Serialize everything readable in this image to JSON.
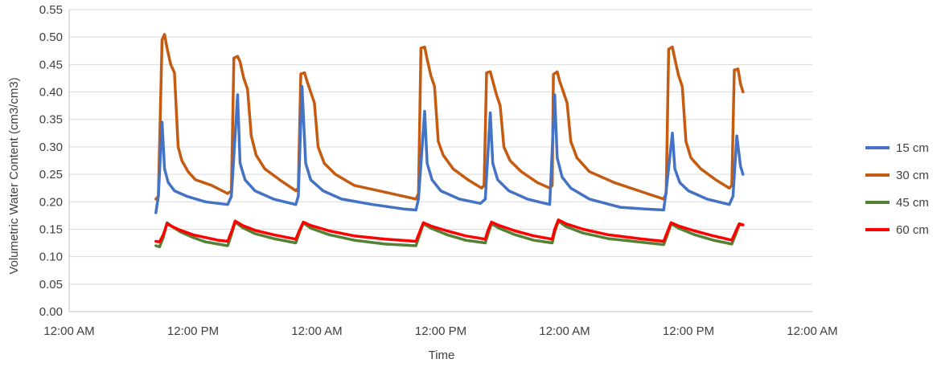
{
  "chart_data": {
    "type": "line",
    "title": "",
    "xlabel": "Time",
    "ylabel": "Volumetric Water Content (cm3/cm3)",
    "ylim": [
      0,
      0.55
    ],
    "y_ticks": [
      "0.00",
      "0.05",
      "0.10",
      "0.15",
      "0.20",
      "0.25",
      "0.30",
      "0.35",
      "0.40",
      "0.45",
      "0.50",
      "0.55"
    ],
    "xlim_days": [
      0,
      6.0
    ],
    "x_ticks": [
      {
        "label": "12:00 AM",
        "day": 0
      },
      {
        "label": "12:00 PM",
        "day": 1.0
      },
      {
        "label": "12:00 AM",
        "day": 2.0
      },
      {
        "label": "12:00 PM",
        "day": 3.0
      },
      {
        "label": "12:00 AM",
        "day": 4.0
      },
      {
        "label": "12:00 PM",
        "day": 5.0
      },
      {
        "label": "12:00 AM",
        "day": 6.0
      }
    ],
    "grid": true,
    "legend_position": "right",
    "series": [
      {
        "name": "15 cm",
        "color": "#4472C4",
        "points": [
          [
            0.7,
            0.18
          ],
          [
            0.72,
            0.21
          ],
          [
            0.75,
            0.345
          ],
          [
            0.77,
            0.26
          ],
          [
            0.8,
            0.235
          ],
          [
            0.85,
            0.22
          ],
          [
            0.95,
            0.21
          ],
          [
            1.1,
            0.2
          ],
          [
            1.28,
            0.195
          ],
          [
            1.31,
            0.21
          ],
          [
            1.36,
            0.395
          ],
          [
            1.38,
            0.27
          ],
          [
            1.42,
            0.24
          ],
          [
            1.5,
            0.22
          ],
          [
            1.65,
            0.205
          ],
          [
            1.83,
            0.195
          ],
          [
            1.85,
            0.21
          ],
          [
            1.88,
            0.41
          ],
          [
            1.91,
            0.27
          ],
          [
            1.95,
            0.24
          ],
          [
            2.05,
            0.22
          ],
          [
            2.2,
            0.205
          ],
          [
            2.45,
            0.195
          ],
          [
            2.7,
            0.187
          ],
          [
            2.8,
            0.185
          ],
          [
            2.82,
            0.205
          ],
          [
            2.87,
            0.365
          ],
          [
            2.89,
            0.27
          ],
          [
            2.93,
            0.24
          ],
          [
            3.0,
            0.22
          ],
          [
            3.15,
            0.205
          ],
          [
            3.32,
            0.197
          ],
          [
            3.36,
            0.205
          ],
          [
            3.4,
            0.362
          ],
          [
            3.42,
            0.27
          ],
          [
            3.46,
            0.24
          ],
          [
            3.55,
            0.22
          ],
          [
            3.7,
            0.205
          ],
          [
            3.88,
            0.195
          ],
          [
            3.92,
            0.395
          ],
          [
            3.94,
            0.28
          ],
          [
            3.98,
            0.245
          ],
          [
            4.05,
            0.225
          ],
          [
            4.2,
            0.205
          ],
          [
            4.45,
            0.19
          ],
          [
            4.65,
            0.187
          ],
          [
            4.8,
            0.185
          ],
          [
            4.82,
            0.22
          ],
          [
            4.87,
            0.325
          ],
          [
            4.89,
            0.26
          ],
          [
            4.93,
            0.235
          ],
          [
            5.0,
            0.22
          ],
          [
            5.15,
            0.205
          ],
          [
            5.33,
            0.195
          ],
          [
            5.36,
            0.21
          ],
          [
            5.39,
            0.32
          ],
          [
            5.42,
            0.265
          ],
          [
            5.44,
            0.25
          ]
        ]
      },
      {
        "name": "30 cm",
        "color": "#C55A11",
        "points": [
          [
            0.7,
            0.205
          ],
          [
            0.72,
            0.21
          ],
          [
            0.75,
            0.495
          ],
          [
            0.77,
            0.505
          ],
          [
            0.79,
            0.48
          ],
          [
            0.82,
            0.45
          ],
          [
            0.85,
            0.435
          ],
          [
            0.88,
            0.3
          ],
          [
            0.91,
            0.275
          ],
          [
            0.96,
            0.255
          ],
          [
            1.02,
            0.24
          ],
          [
            1.15,
            0.23
          ],
          [
            1.28,
            0.215
          ],
          [
            1.31,
            0.22
          ],
          [
            1.33,
            0.462
          ],
          [
            1.36,
            0.465
          ],
          [
            1.38,
            0.455
          ],
          [
            1.41,
            0.425
          ],
          [
            1.44,
            0.405
          ],
          [
            1.47,
            0.32
          ],
          [
            1.51,
            0.285
          ],
          [
            1.58,
            0.26
          ],
          [
            1.7,
            0.24
          ],
          [
            1.83,
            0.22
          ],
          [
            1.85,
            0.225
          ],
          [
            1.87,
            0.433
          ],
          [
            1.9,
            0.435
          ],
          [
            1.92,
            0.42
          ],
          [
            1.95,
            0.4
          ],
          [
            1.98,
            0.38
          ],
          [
            2.01,
            0.3
          ],
          [
            2.06,
            0.27
          ],
          [
            2.15,
            0.25
          ],
          [
            2.3,
            0.23
          ],
          [
            2.5,
            0.22
          ],
          [
            2.7,
            0.21
          ],
          [
            2.8,
            0.205
          ],
          [
            2.82,
            0.215
          ],
          [
            2.84,
            0.48
          ],
          [
            2.87,
            0.482
          ],
          [
            2.89,
            0.46
          ],
          [
            2.92,
            0.43
          ],
          [
            2.95,
            0.41
          ],
          [
            2.98,
            0.31
          ],
          [
            3.02,
            0.285
          ],
          [
            3.1,
            0.26
          ],
          [
            3.22,
            0.24
          ],
          [
            3.33,
            0.225
          ],
          [
            3.35,
            0.23
          ],
          [
            3.37,
            0.435
          ],
          [
            3.4,
            0.437
          ],
          [
            3.42,
            0.42
          ],
          [
            3.45,
            0.395
          ],
          [
            3.48,
            0.375
          ],
          [
            3.51,
            0.3
          ],
          [
            3.56,
            0.275
          ],
          [
            3.65,
            0.255
          ],
          [
            3.78,
            0.235
          ],
          [
            3.88,
            0.225
          ],
          [
            3.9,
            0.23
          ],
          [
            3.91,
            0.432
          ],
          [
            3.94,
            0.437
          ],
          [
            3.96,
            0.42
          ],
          [
            3.99,
            0.4
          ],
          [
            4.02,
            0.38
          ],
          [
            4.05,
            0.31
          ],
          [
            4.1,
            0.28
          ],
          [
            4.2,
            0.255
          ],
          [
            4.4,
            0.235
          ],
          [
            4.6,
            0.22
          ],
          [
            4.8,
            0.205
          ],
          [
            4.82,
            0.215
          ],
          [
            4.84,
            0.478
          ],
          [
            4.87,
            0.482
          ],
          [
            4.89,
            0.46
          ],
          [
            4.92,
            0.43
          ],
          [
            4.95,
            0.41
          ],
          [
            4.98,
            0.31
          ],
          [
            5.02,
            0.28
          ],
          [
            5.1,
            0.26
          ],
          [
            5.22,
            0.24
          ],
          [
            5.33,
            0.225
          ],
          [
            5.35,
            0.23
          ],
          [
            5.37,
            0.44
          ],
          [
            5.4,
            0.442
          ],
          [
            5.42,
            0.415
          ],
          [
            5.44,
            0.4
          ]
        ]
      },
      {
        "name": "45 cm",
        "color": "#548235",
        "points": [
          [
            0.7,
            0.12
          ],
          [
            0.73,
            0.118
          ],
          [
            0.76,
            0.135
          ],
          [
            0.79,
            0.162
          ],
          [
            0.83,
            0.155
          ],
          [
            0.9,
            0.145
          ],
          [
            1.0,
            0.135
          ],
          [
            1.1,
            0.127
          ],
          [
            1.2,
            0.123
          ],
          [
            1.28,
            0.12
          ],
          [
            1.31,
            0.14
          ],
          [
            1.34,
            0.163
          ],
          [
            1.4,
            0.153
          ],
          [
            1.5,
            0.142
          ],
          [
            1.65,
            0.133
          ],
          [
            1.83,
            0.125
          ],
          [
            1.86,
            0.145
          ],
          [
            1.89,
            0.162
          ],
          [
            1.95,
            0.152
          ],
          [
            2.1,
            0.14
          ],
          [
            2.3,
            0.13
          ],
          [
            2.55,
            0.123
          ],
          [
            2.8,
            0.12
          ],
          [
            2.83,
            0.14
          ],
          [
            2.86,
            0.16
          ],
          [
            2.92,
            0.152
          ],
          [
            3.05,
            0.14
          ],
          [
            3.2,
            0.13
          ],
          [
            3.36,
            0.125
          ],
          [
            3.38,
            0.14
          ],
          [
            3.41,
            0.16
          ],
          [
            3.47,
            0.152
          ],
          [
            3.6,
            0.14
          ],
          [
            3.75,
            0.13
          ],
          [
            3.9,
            0.125
          ],
          [
            3.92,
            0.145
          ],
          [
            3.95,
            0.165
          ],
          [
            4.01,
            0.155
          ],
          [
            4.15,
            0.143
          ],
          [
            4.35,
            0.133
          ],
          [
            4.6,
            0.127
          ],
          [
            4.8,
            0.122
          ],
          [
            4.83,
            0.14
          ],
          [
            4.86,
            0.16
          ],
          [
            4.92,
            0.152
          ],
          [
            5.05,
            0.14
          ],
          [
            5.2,
            0.13
          ],
          [
            5.35,
            0.123
          ],
          [
            5.38,
            0.14
          ],
          [
            5.41,
            0.158
          ],
          [
            5.44,
            0.158
          ]
        ]
      },
      {
        "name": "60 cm",
        "color": "#FF0000",
        "points": [
          [
            0.7,
            0.128
          ],
          [
            0.73,
            0.127
          ],
          [
            0.76,
            0.14
          ],
          [
            0.79,
            0.16
          ],
          [
            0.83,
            0.155
          ],
          [
            0.9,
            0.148
          ],
          [
            1.0,
            0.14
          ],
          [
            1.1,
            0.135
          ],
          [
            1.2,
            0.13
          ],
          [
            1.28,
            0.128
          ],
          [
            1.31,
            0.145
          ],
          [
            1.34,
            0.165
          ],
          [
            1.4,
            0.157
          ],
          [
            1.5,
            0.148
          ],
          [
            1.65,
            0.14
          ],
          [
            1.83,
            0.132
          ],
          [
            1.86,
            0.148
          ],
          [
            1.89,
            0.163
          ],
          [
            1.95,
            0.157
          ],
          [
            2.1,
            0.147
          ],
          [
            2.3,
            0.138
          ],
          [
            2.55,
            0.132
          ],
          [
            2.8,
            0.128
          ],
          [
            2.83,
            0.145
          ],
          [
            2.86,
            0.162
          ],
          [
            2.92,
            0.156
          ],
          [
            3.05,
            0.147
          ],
          [
            3.2,
            0.138
          ],
          [
            3.36,
            0.132
          ],
          [
            3.38,
            0.147
          ],
          [
            3.41,
            0.163
          ],
          [
            3.47,
            0.157
          ],
          [
            3.6,
            0.147
          ],
          [
            3.75,
            0.138
          ],
          [
            3.9,
            0.132
          ],
          [
            3.92,
            0.15
          ],
          [
            3.95,
            0.167
          ],
          [
            4.01,
            0.16
          ],
          [
            4.15,
            0.15
          ],
          [
            4.35,
            0.14
          ],
          [
            4.6,
            0.133
          ],
          [
            4.8,
            0.128
          ],
          [
            4.83,
            0.145
          ],
          [
            4.86,
            0.162
          ],
          [
            4.92,
            0.156
          ],
          [
            5.05,
            0.147
          ],
          [
            5.2,
            0.138
          ],
          [
            5.35,
            0.13
          ],
          [
            5.38,
            0.145
          ],
          [
            5.41,
            0.16
          ],
          [
            5.44,
            0.158
          ]
        ]
      }
    ]
  }
}
